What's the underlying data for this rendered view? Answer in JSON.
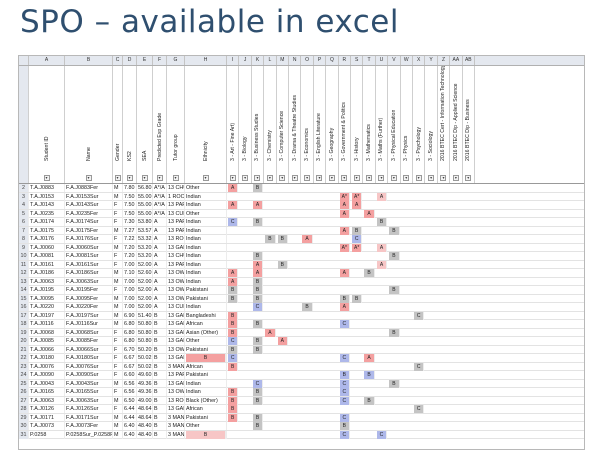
{
  "slide": {
    "title": "SPO – available in excel"
  },
  "colors": {
    "red": "#f4a0a0",
    "grey": "#c4c4c4",
    "blue": "#aeb8ea",
    "pink": "#f7c6c6",
    "header_bg": "#e4e8ef"
  },
  "column_letters": [
    "A",
    "B",
    "C",
    "D",
    "E",
    "F",
    "G",
    "H",
    "I",
    "J",
    "K",
    "L",
    "M",
    "N",
    "O",
    "P",
    "Q",
    "R",
    "S",
    "T",
    "U",
    "V",
    "W",
    "X",
    "Y",
    "Z",
    "AA",
    "AB"
  ],
  "headers": [
    "Student ID",
    "Name",
    "Gender",
    "KS2",
    "SEA",
    "Predicted Exp Grade",
    "Tutor group",
    "Ethnicity",
    "3 - Art - Fine Art)",
    "3 - Biology",
    "3 - Business Studies",
    "3 - Chemistry",
    "3 - Computer Science",
    "3 - Drama & Theatre Studies",
    "3 - Economics",
    "3 - English Literature",
    "3 - Geography",
    "3 - Government & Politics",
    "3 - History",
    "3 - Mathematics",
    "3 - Maths (Further)",
    "3 - Physical Education",
    "3 - Physics",
    "3 - Psychology",
    "3 - Sociology",
    "2016 BTEC Cert - Information Technology",
    "2016 BTEC Dip - Applied Science",
    "2016 BTEC Dip - Business"
  ],
  "rows": [
    {
      "num": "2",
      "id": "T.A.J0883",
      "name": "F.A.J0883Fer",
      "gender": "M",
      "ks2": "7.80",
      "sea": "56.80",
      "grade": "A*/A",
      "tutor": "13 CHURCHILL 13",
      "eth": "Other",
      "marks": [
        [
          "I",
          "A",
          "red"
        ],
        [
          "K",
          "B",
          "grey"
        ]
      ]
    },
    {
      "num": "3",
      "id": "T.A.J0153",
      "name": "F.A.J0153Sur",
      "gender": "M",
      "ks2": "7.50",
      "sea": "55.00",
      "grade": "A*/A",
      "tutor": "1 ROOSEVELT 3P",
      "eth": "Indian",
      "marks": [
        [
          "R",
          "A*",
          "red"
        ],
        [
          "S",
          "A*",
          "red"
        ],
        [
          "U",
          "A",
          "pink"
        ]
      ]
    },
    {
      "num": "4",
      "id": "T.A.J0143",
      "name": "F.A.J0143Sur",
      "gender": "F",
      "ks2": "7.50",
      "sea": "55.00",
      "grade": "A*/A",
      "tutor": "13 PARKS 3P",
      "eth": "Indian",
      "marks": [
        [
          "I",
          "A",
          "red"
        ],
        [
          "K",
          "A",
          "red"
        ],
        [
          "R",
          "A",
          "red"
        ],
        [
          "S",
          "A",
          "red"
        ]
      ]
    },
    {
      "num": "5",
      "id": "T.A.J0235",
      "name": "F.A.J0235Fer",
      "gender": "F",
      "ks2": "7.50",
      "sea": "55.00",
      "grade": "A*/A",
      "tutor": "13 CURIE 3P",
      "eth": "Other",
      "marks": [
        [
          "R",
          "A",
          "red"
        ],
        [
          "T",
          "A",
          "red"
        ]
      ]
    },
    {
      "num": "6",
      "id": "T.A.J0174",
      "name": "F.A.J0174Sur",
      "gender": "F",
      "ks2": "7.30",
      "sea": "53.80",
      "grade": "A",
      "tutor": "13 PARKS 3P",
      "eth": "Indian",
      "marks": [
        [
          "I",
          "C",
          "blue"
        ],
        [
          "K",
          "B",
          "grey"
        ],
        [
          "U",
          "B",
          "grey"
        ]
      ]
    },
    {
      "num": "7",
      "id": "T.A.J0175",
      "name": "F.A.J0175Fer",
      "gender": "M",
      "ks2": "7.27",
      "sea": "53.57",
      "grade": "A",
      "tutor": "13 PARKS 3P",
      "eth": "Indian",
      "marks": [
        [
          "R",
          "A",
          "red"
        ],
        [
          "S",
          "B",
          "grey"
        ],
        [
          "V",
          "B",
          "grey"
        ]
      ]
    },
    {
      "num": "8",
      "id": "T.A.J0176",
      "name": "F.A.J0176Sur",
      "gender": "F",
      "ks2": "7.22",
      "sea": "53.32",
      "grade": "A",
      "tutor": "13 ROOSEVELT 3P",
      "eth": "Indian",
      "marks": [
        [
          "L",
          "B",
          "grey"
        ],
        [
          "M",
          "B",
          "grey"
        ],
        [
          "O",
          "A",
          "red"
        ],
        [
          "S",
          "C",
          "blue"
        ]
      ]
    },
    {
      "num": "9",
      "id": "T.A.J0060",
      "name": "F.A.J0060Sur",
      "gender": "M",
      "ks2": "7.20",
      "sea": "53.20",
      "grade": "A",
      "tutor": "13 GANDHI 3P",
      "eth": "Indian",
      "marks": [
        [
          "R",
          "A*",
          "red"
        ],
        [
          "S",
          "A*",
          "red"
        ],
        [
          "U",
          "A",
          "pink"
        ]
      ]
    },
    {
      "num": "10",
      "id": "T.A.J0081",
      "name": "F.A.J0081Sur",
      "gender": "F",
      "ks2": "7.20",
      "sea": "53.20",
      "grade": "A",
      "tutor": "13 CHURCHILL 3P",
      "eth": "Indian",
      "marks": [
        [
          "K",
          "B",
          "grey"
        ],
        [
          "V",
          "B",
          "grey"
        ]
      ]
    },
    {
      "num": "11",
      "id": "T.A.J0161",
      "name": "F.A.J0161Sur",
      "gender": "F",
      "ks2": "7.00",
      "sea": "52.00",
      "grade": "A",
      "tutor": "13 PARKS 3P",
      "eth": "Indian",
      "marks": [
        [
          "K",
          "A",
          "red"
        ],
        [
          "M",
          "B",
          "grey"
        ],
        [
          "U",
          "A",
          "pink"
        ]
      ]
    },
    {
      "num": "12",
      "id": "T.A.J0186",
      "name": "F.A.J0186Sur",
      "gender": "M",
      "ks2": "7.10",
      "sea": "52.60",
      "grade": "A",
      "tutor": "13 OWENS 3P",
      "eth": "Indian",
      "marks": [
        [
          "I",
          "A",
          "red"
        ],
        [
          "K",
          "A",
          "red"
        ],
        [
          "R",
          "A",
          "red"
        ],
        [
          "T",
          "B",
          "grey"
        ]
      ]
    },
    {
      "num": "13",
      "id": "T.A.J0063",
      "name": "F.A.J0063Sur",
      "gender": "M",
      "ks2": "7.00",
      "sea": "52.00",
      "grade": "A",
      "tutor": "13 OWENS 3P",
      "eth": "Indian",
      "marks": [
        [
          "I",
          "A",
          "red"
        ],
        [
          "K",
          "B",
          "grey"
        ]
      ]
    },
    {
      "num": "14",
      "id": "T.A.J0195",
      "name": "F.A.J0195Fer",
      "gender": "F",
      "ks2": "7.00",
      "sea": "52.00",
      "grade": "A",
      "tutor": "13 OWENS 43",
      "eth": "Pakistani",
      "marks": [
        [
          "I",
          "B",
          "grey"
        ],
        [
          "K",
          "B",
          "grey"
        ],
        [
          "V",
          "B",
          "grey"
        ]
      ]
    },
    {
      "num": "15",
      "id": "T.A.J0095",
      "name": "F.A.J0095Fer",
      "gender": "M",
      "ks2": "7.00",
      "sea": "52.00",
      "grade": "A",
      "tutor": "13 OWENS 43",
      "eth": "Pakistani",
      "marks": [
        [
          "I",
          "B",
          "grey"
        ],
        [
          "K",
          "B",
          "grey"
        ],
        [
          "R",
          "B",
          "grey"
        ],
        [
          "S",
          "B",
          "grey"
        ]
      ]
    },
    {
      "num": "16",
      "id": "T.A.J0220",
      "name": "F.A.J0220Fer",
      "gender": "M",
      "ks2": "7.00",
      "sea": "52.00",
      "grade": "A",
      "tutor": "13 CURIE 13",
      "eth": "Indian",
      "marks": [
        [
          "K",
          "C",
          "blue"
        ],
        [
          "O",
          "B",
          "grey"
        ],
        [
          "R",
          "A",
          "red"
        ]
      ]
    },
    {
      "num": "17",
      "id": "T.A.J0197",
      "name": "F.A.J0197Sur",
      "gender": "M",
      "ks2": "6.90",
      "sea": "51.40",
      "grade": "B",
      "tutor": "13 GANDHI 43",
      "eth": "Bangladeshi",
      "marks": [
        [
          "I",
          "B",
          "red"
        ],
        [
          "X",
          "C",
          "grey"
        ]
      ]
    },
    {
      "num": "18",
      "id": "T.A.J0116",
      "name": "F.A.J0116Sur",
      "gender": "M",
      "ks2": "6.80",
      "sea": "50.80",
      "grade": "B",
      "tutor": "13 GANDHI 44",
      "eth": "African",
      "marks": [
        [
          "I",
          "B",
          "red"
        ],
        [
          "K",
          "B",
          "grey"
        ],
        [
          "R",
          "C",
          "blue"
        ]
      ]
    },
    {
      "num": "19",
      "id": "T.A.J0068",
      "name": "F.A.J0068Sur",
      "gender": "F",
      "ks2": "6.80",
      "sea": "50.80",
      "grade": "B",
      "tutor": "13 GANDHI 43",
      "eth": "Asian (Other)",
      "marks": [
        [
          "I",
          "B",
          "red"
        ],
        [
          "L",
          "A",
          "red"
        ],
        [
          "V",
          "B",
          "grey"
        ]
      ]
    },
    {
      "num": "20",
      "id": "T.A.J0085",
      "name": "F.A.J0085Fer",
      "gender": "F",
      "ks2": "6.80",
      "sea": "50.80",
      "grade": "B",
      "tutor": "13 GANDHI 43",
      "eth": "Other",
      "marks": [
        [
          "I",
          "C",
          "blue"
        ],
        [
          "K",
          "B",
          "grey"
        ],
        [
          "M",
          "A",
          "red"
        ]
      ]
    },
    {
      "num": "21",
      "id": "T.A.J0066",
      "name": "F.A.J0066Sur",
      "gender": "F",
      "ks2": "6.70",
      "sea": "50.20",
      "grade": "B",
      "tutor": "13 OWENS 43",
      "eth": "Pakistani",
      "marks": [
        [
          "I",
          "B",
          "grey"
        ],
        [
          "K",
          "B",
          "grey"
        ]
      ]
    },
    {
      "num": "22",
      "id": "T.A.J0180",
      "name": "F.A.J0180Sur",
      "gender": "F",
      "ks2": "6.67",
      "sea": "50.02",
      "grade": "B",
      "tutor": "13 GANDHI 3P",
      "eth": "Indian",
      "marks": [
        [
          "H",
          "B",
          "red"
        ],
        [
          "I",
          "C",
          "blue"
        ],
        [
          "R",
          "C",
          "blue"
        ],
        [
          "T",
          "A",
          "red"
        ]
      ]
    },
    {
      "num": "23",
      "id": "T.A.J0076",
      "name": "F.A.J0076Sur",
      "gender": "F",
      "ks2": "6.67",
      "sea": "50.02",
      "grade": "B",
      "tutor": "3 MANDELA 44",
      "eth": "African",
      "marks": [
        [
          "I",
          "B",
          "red"
        ],
        [
          "X",
          "C",
          "grey"
        ]
      ]
    },
    {
      "num": "24",
      "id": "T.A.J0090",
      "name": "F.A.J0090Sur",
      "gender": "F",
      "ks2": "6.60",
      "sea": "49.60",
      "grade": "B",
      "tutor": "13 PARKS 43",
      "eth": "Pakistani",
      "marks": [
        [
          "R",
          "B",
          "blue"
        ],
        [
          "T",
          "B",
          "blue"
        ]
      ]
    },
    {
      "num": "25",
      "id": "T.A.J0043",
      "name": "F.A.J0043Sur",
      "gender": "M",
      "ks2": "6.56",
      "sea": "49.36",
      "grade": "B",
      "tutor": "13 GANDHI 3P",
      "eth": "Indian",
      "marks": [
        [
          "K",
          "C",
          "blue"
        ],
        [
          "R",
          "C",
          "blue"
        ],
        [
          "V",
          "B",
          "grey"
        ]
      ]
    },
    {
      "num": "26",
      "id": "T.A.J0165",
      "name": "F.A.J0165Sur",
      "gender": "F",
      "ks2": "6.56",
      "sea": "49.36",
      "grade": "B",
      "tutor": "13 OWENS 3P",
      "eth": "Indian",
      "marks": [
        [
          "I",
          "B",
          "red"
        ],
        [
          "K",
          "B",
          "grey"
        ],
        [
          "R",
          "C",
          "blue"
        ]
      ]
    },
    {
      "num": "27",
      "id": "T.A.J0063",
      "name": "F.A.J0063Sur",
      "gender": "M",
      "ks2": "6.50",
      "sea": "49.00",
      "grade": "B",
      "tutor": "13 ROOSEVELT 4S",
      "eth": "Black (Other)",
      "marks": [
        [
          "I",
          "B",
          "red"
        ],
        [
          "K",
          "B",
          "grey"
        ],
        [
          "R",
          "C",
          "blue"
        ],
        [
          "T",
          "B",
          "grey"
        ]
      ]
    },
    {
      "num": "28",
      "id": "T.A.J0126",
      "name": "F.A.J0126Sur",
      "gender": "F",
      "ks2": "6.44",
      "sea": "48.64",
      "grade": "B",
      "tutor": "13 GANDHI 44",
      "eth": "African",
      "marks": [
        [
          "I",
          "B",
          "red"
        ],
        [
          "X",
          "C",
          "grey"
        ]
      ]
    },
    {
      "num": "29",
      "id": "T.A.J0171",
      "name": "F.A.J0171Sur",
      "gender": "M",
      "ks2": "6.44",
      "sea": "48.64",
      "grade": "B",
      "tutor": "3 MANDELA 43",
      "eth": "Pakistani",
      "marks": [
        [
          "I",
          "B",
          "red"
        ],
        [
          "K",
          "B",
          "grey"
        ],
        [
          "R",
          "C",
          "blue"
        ]
      ]
    },
    {
      "num": "30",
      "id": "T.A.J0073",
      "name": "F.A.J0073Fer",
      "gender": "M",
      "ks2": "6.40",
      "sea": "48.40",
      "grade": "B",
      "tutor": "3 MANDELA 3P",
      "eth": "Other",
      "marks": [
        [
          "K",
          "B",
          "grey"
        ],
        [
          "R",
          "B",
          "grey"
        ]
      ]
    },
    {
      "num": "31",
      "id": "P.0258",
      "name": "P.0258Sur_P.0258Fe",
      "gender": "M",
      "ks2": "6.40",
      "sea": "48.40",
      "grade": "B",
      "tutor": "3 MANDELA 3P",
      "eth": "Other",
      "marks": [
        [
          "H",
          "B",
          "pink"
        ],
        [
          "R",
          "C",
          "blue"
        ],
        [
          "U",
          "C",
          "blue"
        ]
      ]
    }
  ]
}
